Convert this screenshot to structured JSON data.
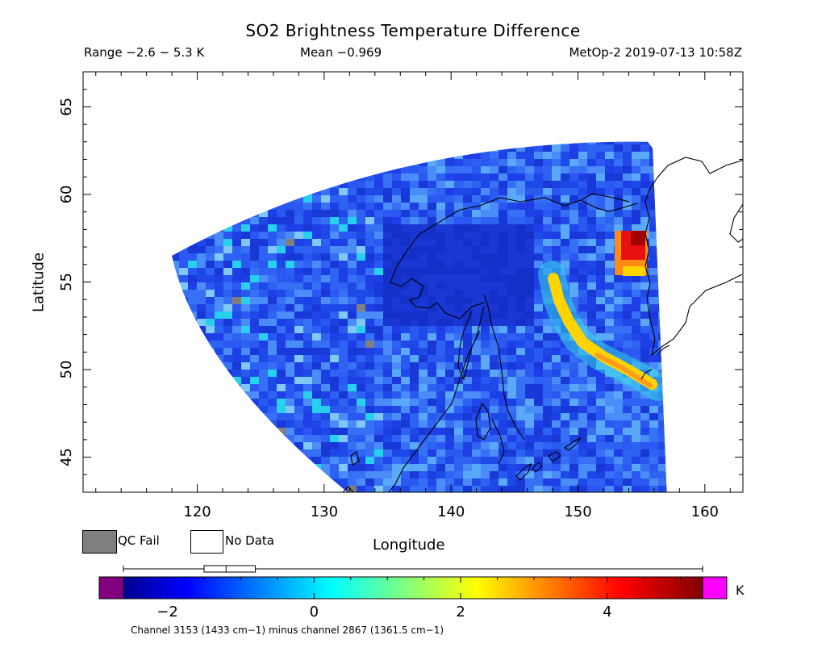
{
  "title": "SO2 Brightness Temperature Difference",
  "header": {
    "range": "Range −2.6 − 5.3 K",
    "mean": "Mean −0.969",
    "satellite_time": "MetOp-2 2019-07-13 10:58Z"
  },
  "axes": {
    "xlabel": "Longitude",
    "ylabel": "Latitude",
    "xlim": [
      111,
      163
    ],
    "ylim": [
      43,
      67
    ],
    "xticks": [
      120,
      130,
      140,
      150,
      160
    ],
    "yticks": [
      45,
      50,
      55,
      60,
      65
    ]
  },
  "legend": {
    "qc_fail_label": "QC Fail",
    "no_data_label": "No Data",
    "qc_fail_color": "#7f7f7f",
    "no_data_color": "#ffffff"
  },
  "colorbar": {
    "unit": "K",
    "min": -2.6,
    "max": 5.3,
    "ticks": [
      -2,
      0,
      2,
      4
    ],
    "tick_labels": [
      "−2",
      "0",
      "2",
      "4"
    ],
    "under_color": "#800080",
    "over_color": "#ff00ff",
    "boxplot": {
      "whisker_low": -2.6,
      "q1": -1.5,
      "median": -1.2,
      "q3": -0.8,
      "whisker_high": 5.3
    },
    "footnote": "Channel 3153 (1433 cm−1) minus channel 2867 (1361.5 cm−1)"
  },
  "chart_data": {
    "type": "heatmap",
    "title": "SO2 Brightness Temperature Difference",
    "xlabel": "Longitude",
    "ylabel": "Latitude",
    "xlim": [
      111,
      163
    ],
    "ylim": [
      43,
      67
    ],
    "value_unit": "K",
    "value_range": [
      -2.6,
      5.3
    ],
    "mean": -0.969,
    "swath_corners": {
      "top_left": [
        118,
        56.5
      ],
      "top_right": [
        155.5,
        63
      ],
      "bottom_left": [
        132,
        43
      ],
      "bottom_right": [
        157,
        43
      ]
    },
    "features": [
      {
        "name": "SO2 plume arc",
        "lon_lat": [
          [
            148,
            55
          ],
          [
            149,
            53
          ],
          [
            150,
            51
          ],
          [
            152,
            50
          ],
          [
            154,
            49
          ],
          [
            155,
            48.5
          ]
        ],
        "value_K": 3
      },
      {
        "name": "peak near Kamchatka coast",
        "lon_lat": [
          154.5,
          57
        ],
        "value_K": 5.3
      },
      {
        "name": "cold region over Sea of Okhotsk",
        "lon_lat": [
          140,
          55.5
        ],
        "value_K": -2
      }
    ],
    "colorbar_ticks": [
      -2,
      0,
      2,
      4
    ]
  }
}
